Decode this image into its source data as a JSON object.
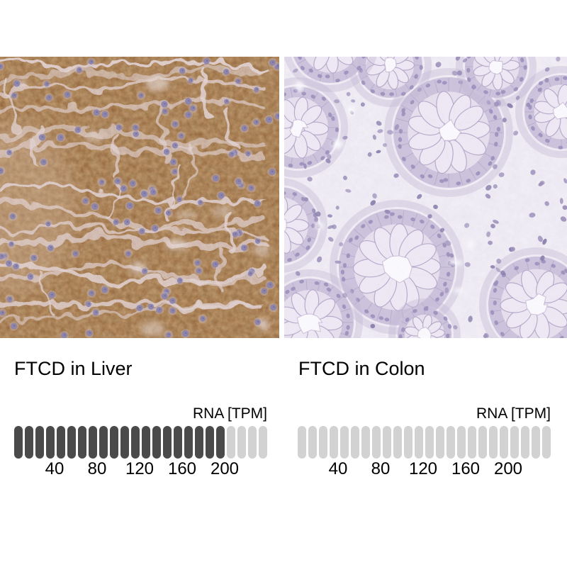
{
  "figure": {
    "background_color": "#ffffff"
  },
  "panels": [
    {
      "title": "FTCD in Liver",
      "unit_label": "RNA [TPM]",
      "image": "liver-ihc-micrograph",
      "stain_appearance": "strong brown cytoplasmic staining with pale sinusoids and blue-purple nuclei"
    },
    {
      "title": "FTCD in Colon",
      "unit_label": "RNA [TPM]",
      "image": "colon-ihc-micrograph",
      "stain_appearance": "negative staining, pale blue-purple counterstained glands and nuclei"
    }
  ],
  "chart_data": [
    {
      "type": "bar",
      "title": "FTCD in Liver",
      "ylabel": "RNA [TPM]",
      "segments_total": 24,
      "segments_filled": 20,
      "tpm_per_segment": 10,
      "value_tpm": 200,
      "tick_labels": [
        40,
        80,
        120,
        160,
        200
      ],
      "tick_every_segments": 4,
      "filled_color": "#4a4a4a",
      "empty_color": "#d2d2d2"
    },
    {
      "type": "bar",
      "title": "FTCD in Colon",
      "ylabel": "RNA [TPM]",
      "segments_total": 24,
      "segments_filled": 0,
      "tpm_per_segment": 10,
      "value_tpm": 0,
      "tick_labels": [
        40,
        80,
        120,
        160,
        200
      ],
      "tick_every_segments": 4,
      "filled_color": "#4a4a4a",
      "empty_color": "#d2d2d2"
    }
  ]
}
